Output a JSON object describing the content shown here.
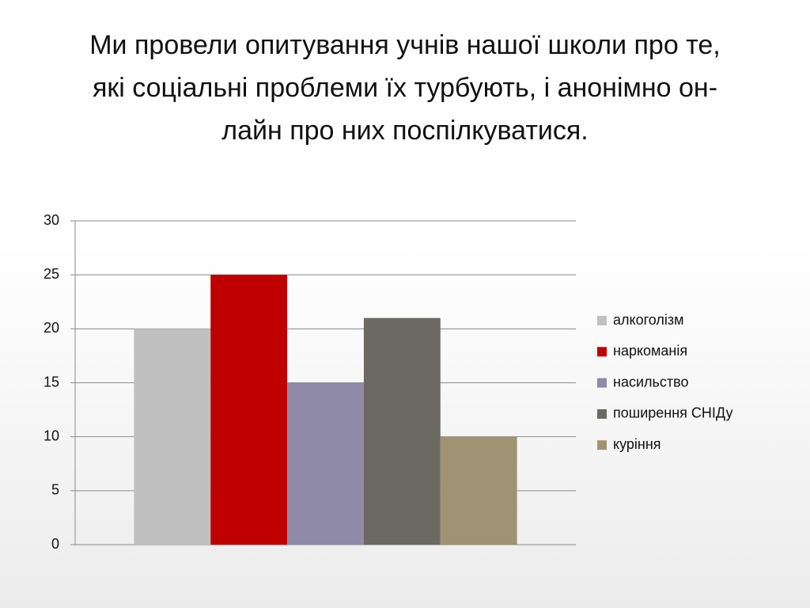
{
  "chart_data": {
    "type": "bar",
    "title": "Ми провели опитування учнів нашої школи про те, які соціальні проблеми їх турбують, і анонімно он-лайн про них поспілкуватися.",
    "categories": [
      null
    ],
    "series": [
      {
        "name": "алкоголізм",
        "color": "#c0c0c0",
        "values": [
          20
        ]
      },
      {
        "name": "наркоманія",
        "color": "#c00000",
        "values": [
          25
        ]
      },
      {
        "name": "насильство",
        "color": "#8e8aa8",
        "values": [
          15
        ]
      },
      {
        "name": "поширення СНІДу",
        "color": "#6b6962",
        "values": [
          21
        ]
      },
      {
        "name": "куріння",
        "color": "#a09373",
        "values": [
          10
        ]
      }
    ],
    "ylim": [
      0,
      30
    ],
    "yticks": [
      0,
      5,
      10,
      15,
      20,
      25,
      30
    ],
    "grid": true,
    "legend": "right"
  }
}
